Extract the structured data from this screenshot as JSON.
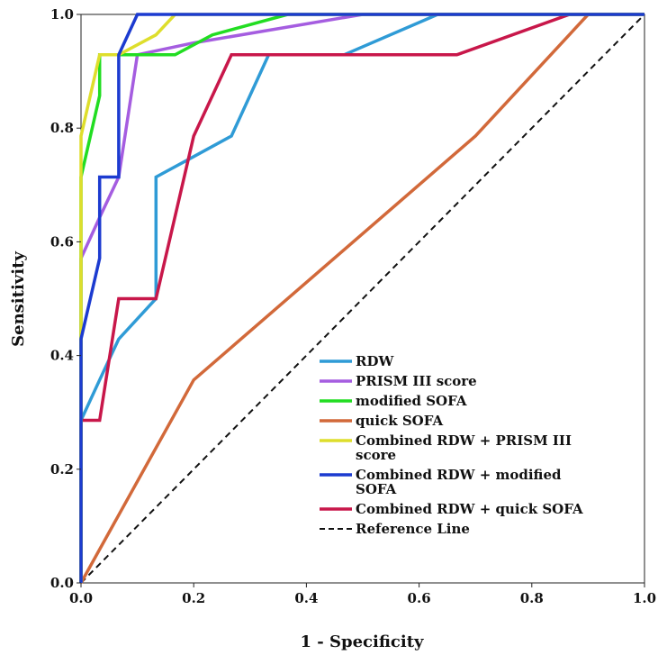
{
  "chart_data": {
    "type": "line",
    "title": "",
    "xlabel": "1 - Specificity",
    "ylabel": "Sensitivity",
    "xlim": [
      0,
      1
    ],
    "ylim": [
      0,
      1
    ],
    "x_ticks": [
      "0.0",
      "0.2",
      "0.4",
      "0.6",
      "0.8",
      "1.0"
    ],
    "y_ticks": [
      "0.0",
      "0.2",
      "0.4",
      "0.6",
      "0.8",
      "1.0"
    ],
    "grid": false,
    "legend_position": "bottom-right",
    "series": [
      {
        "name": "RDW",
        "color": "#2f9bd6",
        "dash": false,
        "points": [
          [
            0,
            0
          ],
          [
            0,
            0.286
          ],
          [
            0.033,
            0.357
          ],
          [
            0.067,
            0.429
          ],
          [
            0.133,
            0.5
          ],
          [
            0.133,
            0.714
          ],
          [
            0.2,
            0.75
          ],
          [
            0.267,
            0.786
          ],
          [
            0.333,
            0.929
          ],
          [
            0.467,
            0.929
          ],
          [
            0.633,
            1.0
          ],
          [
            1.0,
            1.0
          ]
        ]
      },
      {
        "name": "PRISM III score",
        "color": "#a55de0",
        "dash": false,
        "points": [
          [
            0,
            0
          ],
          [
            0,
            0.571
          ],
          [
            0.033,
            0.643
          ],
          [
            0.067,
            0.714
          ],
          [
            0.1,
            0.929
          ],
          [
            0.2,
            0.95
          ],
          [
            0.5,
            1.0
          ],
          [
            1.0,
            1.0
          ]
        ]
      },
      {
        "name": "modified SOFA",
        "color": "#22dd22",
        "dash": false,
        "points": [
          [
            0,
            0
          ],
          [
            0,
            0.714
          ],
          [
            0.033,
            0.857
          ],
          [
            0.033,
            0.929
          ],
          [
            0.167,
            0.929
          ],
          [
            0.233,
            0.964
          ],
          [
            0.367,
            1.0
          ],
          [
            1.0,
            1.0
          ]
        ]
      },
      {
        "name": "quick SOFA",
        "color": "#d2693a",
        "dash": false,
        "points": [
          [
            0,
            0
          ],
          [
            0.2,
            0.357
          ],
          [
            0.7,
            0.786
          ],
          [
            0.9,
            1.0
          ],
          [
            1.0,
            1.0
          ]
        ]
      },
      {
        "name": "Combined RDW + PRISM III score",
        "color": "#dede2c",
        "dash": false,
        "points": [
          [
            0,
            0
          ],
          [
            0,
            0.786
          ],
          [
            0.033,
            0.929
          ],
          [
            0.067,
            0.929
          ],
          [
            0.133,
            0.964
          ],
          [
            0.167,
            1.0
          ],
          [
            1.0,
            1.0
          ]
        ]
      },
      {
        "name": "Combined RDW + modified SOFA",
        "color": "#1c3bd0",
        "dash": false,
        "points": [
          [
            0,
            0
          ],
          [
            0,
            0.429
          ],
          [
            0.033,
            0.571
          ],
          [
            0.033,
            0.714
          ],
          [
            0.067,
            0.714
          ],
          [
            0.067,
            0.929
          ],
          [
            0.1,
            1.0
          ],
          [
            1.0,
            1.0
          ]
        ]
      },
      {
        "name": "Combined RDW + quick SOFA",
        "color": "#c8174a",
        "dash": false,
        "points": [
          [
            0,
            0
          ],
          [
            0,
            0.286
          ],
          [
            0.033,
            0.286
          ],
          [
            0.067,
            0.5
          ],
          [
            0.133,
            0.5
          ],
          [
            0.2,
            0.786
          ],
          [
            0.267,
            0.929
          ],
          [
            0.667,
            0.929
          ],
          [
            0.867,
            1.0
          ],
          [
            1.0,
            1.0
          ]
        ]
      },
      {
        "name": "Reference Line",
        "color": "#111111",
        "dash": true,
        "points": [
          [
            0,
            0
          ],
          [
            1,
            1
          ]
        ]
      }
    ],
    "legend": [
      {
        "lines": [
          "RDW"
        ]
      },
      {
        "lines": [
          "PRISM III score"
        ]
      },
      {
        "lines": [
          "modified SOFA"
        ]
      },
      {
        "lines": [
          "quick SOFA"
        ]
      },
      {
        "lines": [
          "Combined RDW + PRISM III",
          "score"
        ]
      },
      {
        "lines": [
          "Combined RDW + modified",
          "SOFA"
        ]
      },
      {
        "lines": [
          "Combined RDW + quick SOFA"
        ]
      },
      {
        "lines": [
          "Reference Line"
        ]
      }
    ]
  }
}
